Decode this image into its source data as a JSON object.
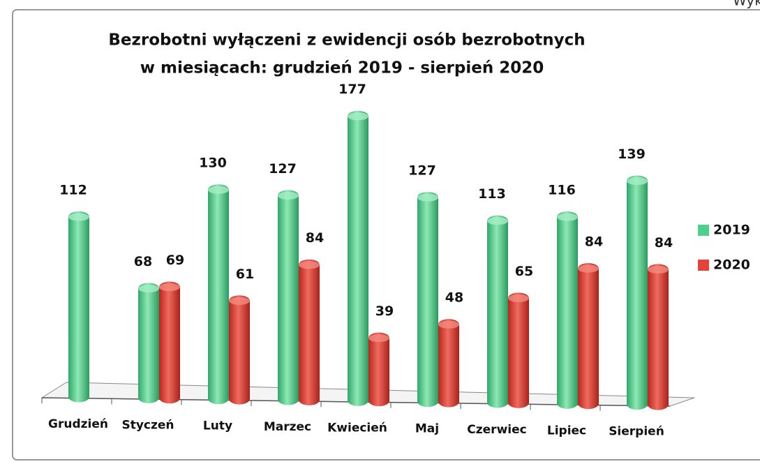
{
  "page_label": "Wykres",
  "chart_data": {
    "type": "bar",
    "title": [
      "Bezrobotni wyłączeni z ewidencji osób bezrobotnych",
      "w miesiącach: grudzień 2019 - sierpień 2020"
    ],
    "categories": [
      "Grudzień",
      "Styczeń",
      "Luty",
      "Marzec",
      "Kwiecień",
      "Maj",
      "Czerwiec",
      "Lipiec",
      "Sierpień"
    ],
    "series": [
      {
        "name": "2019",
        "color": "#4fcf8a",
        "values": [
          112,
          68,
          130,
          127,
          177,
          127,
          113,
          116,
          139
        ]
      },
      {
        "name": "2020",
        "color": "#e2443a",
        "values": [
          null,
          69,
          61,
          84,
          39,
          48,
          65,
          84,
          84
        ]
      }
    ],
    "legend": "right"
  }
}
